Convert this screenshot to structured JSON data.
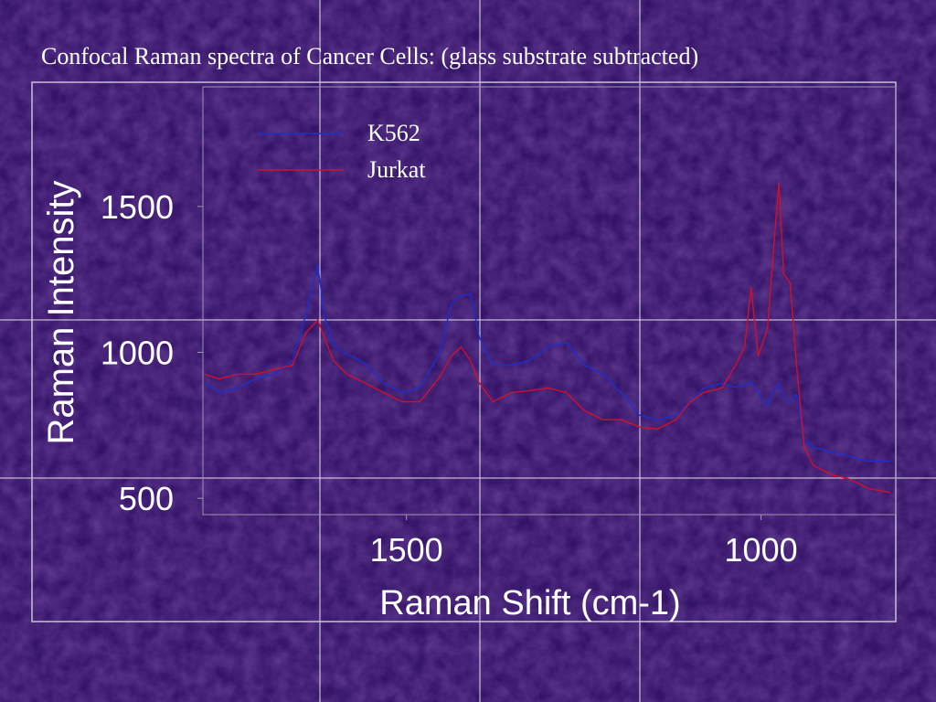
{
  "chart_data": {
    "type": "line",
    "title": "Confocal Raman spectra of Cancer Cells: (glass substrate subtracted)",
    "xlabel": "Raman Shift (cm-1)",
    "ylabel": "Raman Intensity",
    "x": [
      1784,
      1764,
      1738,
      1713,
      1687,
      1661,
      1642,
      1625,
      1616,
      1603,
      1584,
      1558,
      1532,
      1506,
      1481,
      1455,
      1436,
      1423,
      1410,
      1397,
      1378,
      1352,
      1326,
      1300,
      1274,
      1249,
      1223,
      1197,
      1171,
      1146,
      1120,
      1100,
      1081,
      1055,
      1036,
      1023,
      1014,
      1004,
      991,
      984,
      975,
      968,
      959,
      950,
      939,
      926,
      901,
      875,
      849,
      817
    ],
    "series": [
      {
        "name": "K562",
        "color": "#1a2fd0",
        "values": [
          894,
          862,
          878,
          909,
          925,
          972,
          1128,
          1300,
          1128,
          1025,
          994,
          962,
          894,
          862,
          878,
          988,
          1169,
          1194,
          1200,
          1050,
          956,
          956,
          972,
          1019,
          1034,
          956,
          925,
          862,
          784,
          769,
          784,
          831,
          878,
          894,
          881,
          888,
          900,
          862,
          816,
          862,
          894,
          847,
          831,
          856,
          700,
          675,
          659,
          644,
          628,
          628
        ]
      },
      {
        "name": "Jurkat",
        "color": "#d0102a",
        "values": [
          925,
          909,
          925,
          925,
          941,
          956,
          1066,
          1112,
          1050,
          972,
          925,
          894,
          862,
          831,
          831,
          909,
          988,
          1019,
          972,
          894,
          831,
          862,
          869,
          878,
          862,
          800,
          769,
          769,
          744,
          737,
          769,
          831,
          862,
          878,
          956,
          1019,
          1222,
          988,
          1081,
          1300,
          1581,
          1269,
          1237,
          956,
          675,
          612,
          581,
          566,
          534,
          519
        ]
      }
    ],
    "xlim": [
      1787,
      810
    ],
    "ylim": [
      444,
      1910
    ],
    "xticks": [
      1500,
      1000
    ],
    "yticks": [
      500,
      1000,
      1500
    ]
  }
}
